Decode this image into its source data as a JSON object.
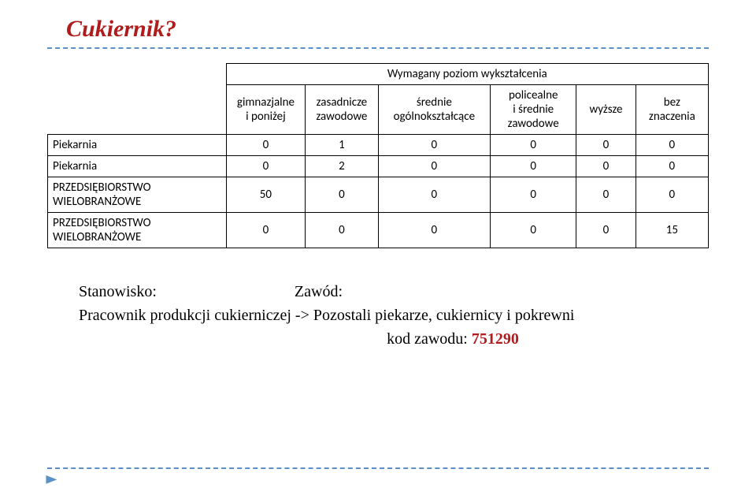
{
  "title": {
    "text": "Cukiernik?",
    "color": "#b01b1b"
  },
  "dashed_color": "#5b8fc8",
  "table": {
    "top_header": "Wymagany poziom wykształcenia",
    "columns": [
      "gimnazjalne i poniżej",
      "zasadnicze zawodowe",
      "średnie ogólnokształcące",
      "policealne i średnie zawodowe",
      "wyższe",
      "bez znaczenia"
    ],
    "rows": [
      {
        "label": "Piekarnia",
        "values": [
          "0",
          "1",
          "0",
          "0",
          "0",
          "0"
        ]
      },
      {
        "label": "Piekarnia",
        "values": [
          "0",
          "2",
          "0",
          "0",
          "0",
          "0"
        ]
      },
      {
        "label": "PRZEDSIĘBIORSTWO WIELOBRANŻOWE",
        "values": [
          "50",
          "0",
          "0",
          "0",
          "0",
          "0"
        ]
      },
      {
        "label": "PRZEDSIĘBIORSTWO WIELOBRANŻOWE",
        "values": [
          "0",
          "0",
          "0",
          "0",
          "0",
          "15"
        ]
      }
    ]
  },
  "below": {
    "line1_left": "Stanowisko:",
    "line1_right": "Zawód:",
    "line2": "Pracownik produkcji cukierniczej -> Pozostali piekarze, cukiernicy i pokrewni",
    "line3_label": "kod zawodu:",
    "line3_code": "751290",
    "code_color": "#b01b1b"
  },
  "arrow_color": "#5b8fc8"
}
